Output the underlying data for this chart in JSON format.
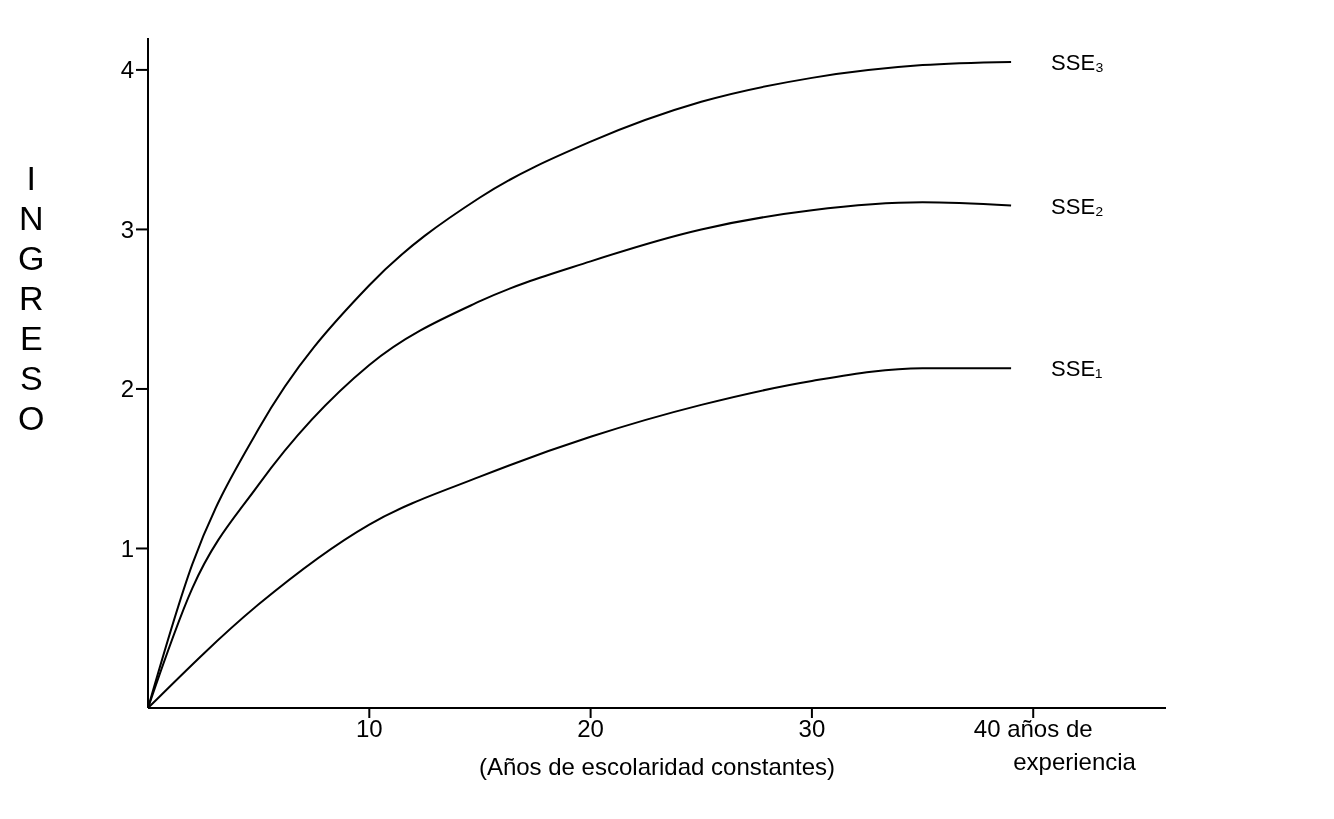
{
  "chart_data": {
    "type": "line",
    "xlabel": "(Años de escolaridad constantes)",
    "ylabel": "INGRESO",
    "annotations": [
      "experiencia"
    ],
    "xlim": [
      0,
      46
    ],
    "ylim": [
      0,
      4.2
    ],
    "xticks": [
      10,
      20,
      30,
      {
        "value": 40,
        "label": "40 años de"
      }
    ],
    "yticks": [
      1,
      2,
      3,
      4
    ],
    "grid": false,
    "legend": false,
    "marker": "none",
    "line_style": "solid",
    "series": [
      {
        "name": "SSE₃",
        "color": "#000000",
        "x": [
          0,
          2,
          5,
          10,
          15,
          20,
          25,
          30,
          35,
          39
        ],
        "values": [
          0,
          0.9,
          1.75,
          2.65,
          3.2,
          3.55,
          3.8,
          3.95,
          4.03,
          4.05
        ]
      },
      {
        "name": "SSE₂",
        "color": "#000000",
        "x": [
          0,
          2,
          5,
          10,
          15,
          20,
          25,
          30,
          35,
          39
        ],
        "values": [
          0,
          0.75,
          1.4,
          2.15,
          2.55,
          2.8,
          3.0,
          3.12,
          3.17,
          3.15
        ]
      },
      {
        "name": "SSE₁",
        "color": "#000000",
        "x": [
          0,
          5,
          10,
          15,
          20,
          25,
          30,
          35,
          39
        ],
        "values": [
          0,
          0.65,
          1.15,
          1.45,
          1.7,
          1.9,
          2.05,
          2.13,
          2.13
        ]
      }
    ]
  }
}
